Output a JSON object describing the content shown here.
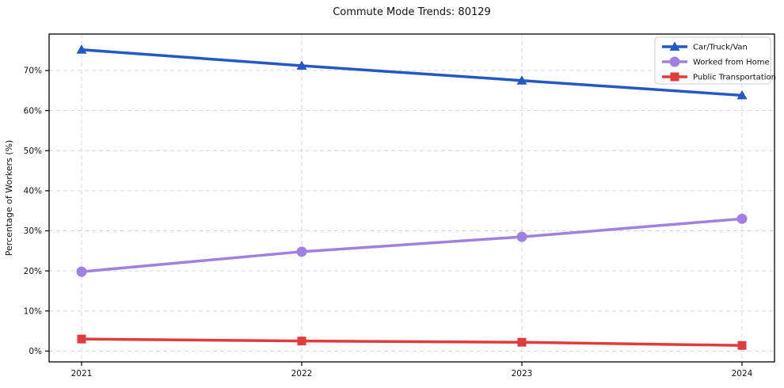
{
  "chart_data": {
    "type": "line",
    "title": "Commute Mode Trends: 80129",
    "xlabel": "",
    "ylabel": "Percentage of Workers (%)",
    "categories": [
      "2021",
      "2022",
      "2023",
      "2024"
    ],
    "series": [
      {
        "name": "Car/Truck/Van",
        "color": "#2359c4",
        "marker": "triangle",
        "values": [
          75.2,
          71.2,
          67.5,
          63.8
        ]
      },
      {
        "name": "Worked from Home",
        "color": "#a080e0",
        "marker": "circle",
        "values": [
          19.8,
          24.8,
          28.5,
          33.0
        ]
      },
      {
        "name": "Public Transportation",
        "color": "#e03c3c",
        "marker": "square",
        "values": [
          3.0,
          2.5,
          2.2,
          1.4
        ]
      }
    ],
    "yticks": [
      0,
      10,
      20,
      30,
      40,
      50,
      60,
      70
    ],
    "ytick_labels": [
      "0%",
      "10%",
      "20%",
      "30%",
      "40%",
      "50%",
      "60%",
      "70%"
    ],
    "ylim": [
      -2.7,
      79.1
    ],
    "grid": true,
    "grid_style": "dashed",
    "legend_position": "top-right"
  },
  "colors": {
    "background": "#ffffff",
    "grid": "#d6d6d6",
    "spine": "#000000",
    "tick_text": "#111111",
    "legend_border": "#cccccc",
    "legend_background": "#ffffff"
  }
}
